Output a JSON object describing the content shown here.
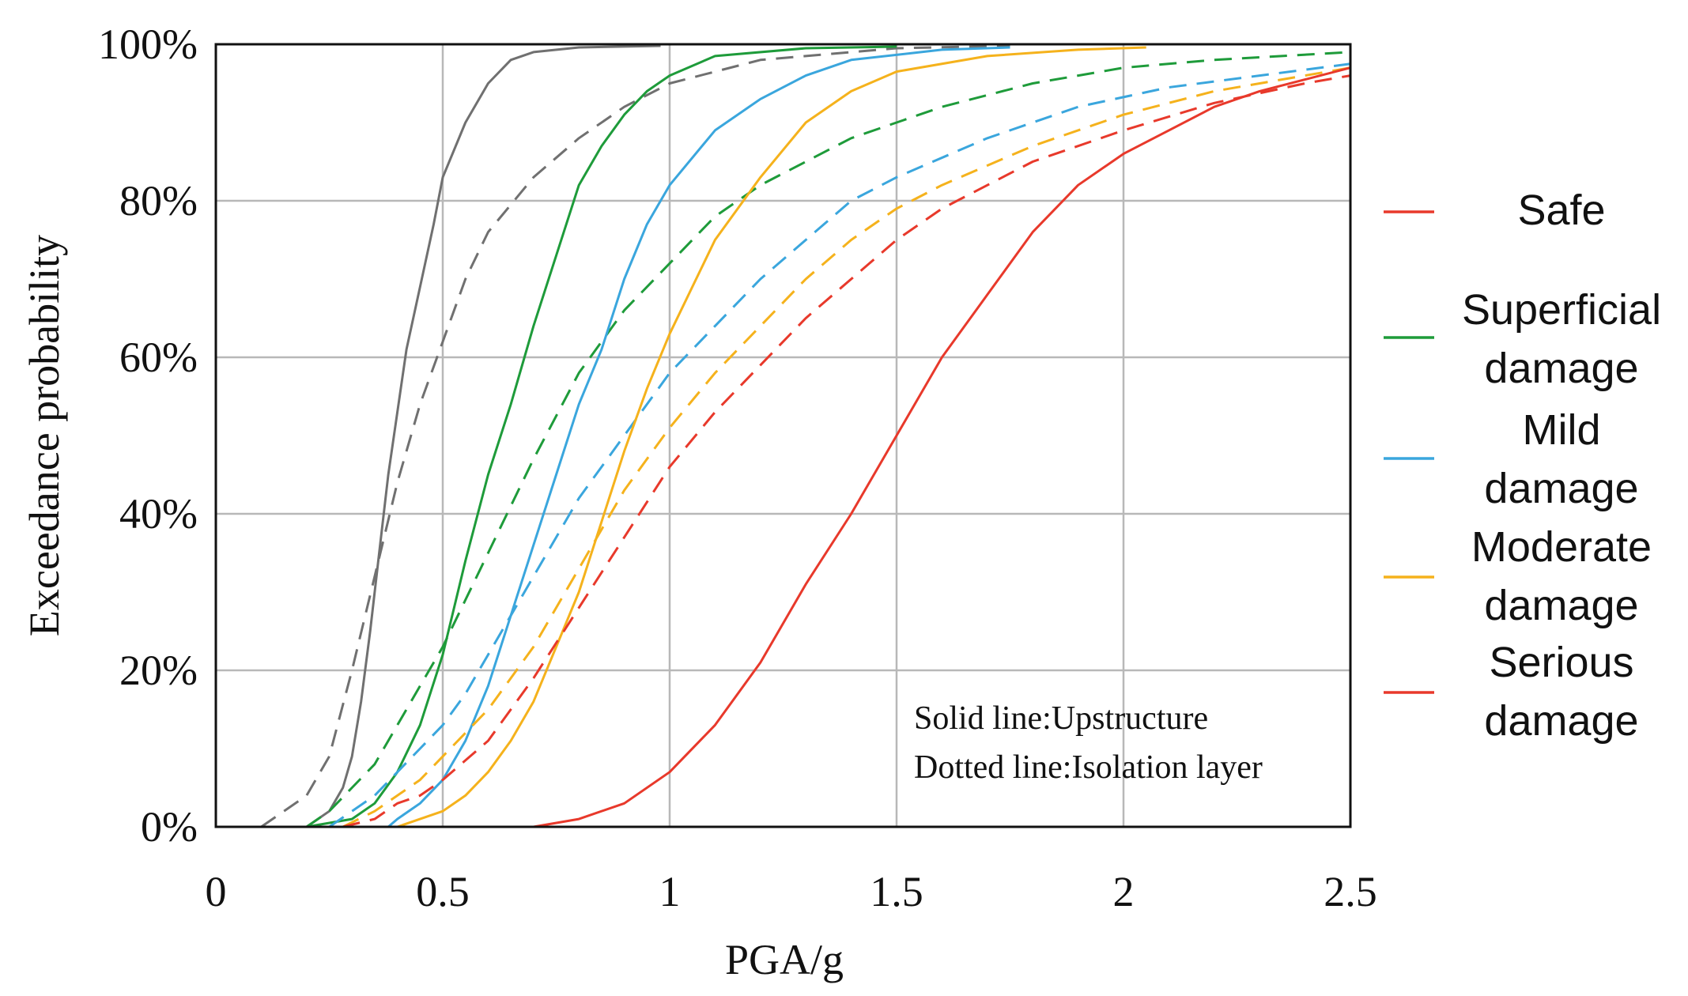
{
  "chart_data": {
    "type": "line",
    "xlabel": "PGA/g",
    "ylabel": "Exceedance probability",
    "xlim": [
      0,
      2.5
    ],
    "ylim": [
      0,
      100
    ],
    "x_ticks": [
      0,
      0.5,
      1,
      1.5,
      2,
      2.5
    ],
    "x_tick_labels": [
      "0",
      "0.5",
      "1",
      "1.5",
      "2",
      "2.5"
    ],
    "y_ticks": [
      0,
      20,
      40,
      60,
      80,
      100
    ],
    "y_tick_labels": [
      "0%",
      "20%",
      "40%",
      "60%",
      "80%",
      "100%"
    ],
    "grid": true,
    "annotations": [
      "Solid line:Upstructure",
      "Dotted line:Isolation layer"
    ],
    "legend": [
      {
        "label": [
          "Safe"
        ],
        "color": "#e8392b"
      },
      {
        "label": [
          "Superficial",
          "damage"
        ],
        "color": "#1e9b3a"
      },
      {
        "label": [
          "Mild",
          "damage"
        ],
        "color": "#3aa6dd"
      },
      {
        "label": [
          "Moderate",
          "damage"
        ],
        "color": "#f5b21c"
      },
      {
        "label": [
          "Serious",
          "damage"
        ],
        "color": "#e8392b"
      }
    ],
    "series": [
      {
        "name": "Safe (Upstructure)",
        "color": "#707070",
        "style": "solid",
        "points": [
          [
            0.2,
            0
          ],
          [
            0.25,
            2
          ],
          [
            0.28,
            5
          ],
          [
            0.3,
            9
          ],
          [
            0.32,
            16
          ],
          [
            0.34,
            25
          ],
          [
            0.36,
            35
          ],
          [
            0.38,
            45
          ],
          [
            0.4,
            53
          ],
          [
            0.42,
            61
          ],
          [
            0.45,
            69
          ],
          [
            0.48,
            77
          ],
          [
            0.5,
            83
          ],
          [
            0.55,
            90
          ],
          [
            0.6,
            95
          ],
          [
            0.65,
            98
          ],
          [
            0.7,
            99
          ],
          [
            0.8,
            99.6
          ],
          [
            0.98,
            99.8
          ]
        ]
      },
      {
        "name": "Safe (Isolation layer)",
        "color": "#707070",
        "style": "dashed",
        "points": [
          [
            0.1,
            0
          ],
          [
            0.15,
            2
          ],
          [
            0.2,
            4
          ],
          [
            0.25,
            9
          ],
          [
            0.3,
            20
          ],
          [
            0.35,
            32
          ],
          [
            0.4,
            44
          ],
          [
            0.45,
            54
          ],
          [
            0.5,
            62
          ],
          [
            0.55,
            70
          ],
          [
            0.6,
            76
          ],
          [
            0.7,
            83
          ],
          [
            0.8,
            88
          ],
          [
            0.9,
            92
          ],
          [
            1.0,
            95
          ],
          [
            1.2,
            98
          ],
          [
            1.5,
            99.5
          ],
          [
            1.75,
            99.8
          ]
        ]
      },
      {
        "name": "Superficial damage (Upstructure)",
        "color": "#1e9b3a",
        "style": "solid",
        "points": [
          [
            0.2,
            0
          ],
          [
            0.3,
            1
          ],
          [
            0.35,
            3
          ],
          [
            0.4,
            7
          ],
          [
            0.45,
            13
          ],
          [
            0.5,
            22
          ],
          [
            0.55,
            34
          ],
          [
            0.6,
            45
          ],
          [
            0.65,
            54
          ],
          [
            0.7,
            64
          ],
          [
            0.75,
            73
          ],
          [
            0.8,
            82
          ],
          [
            0.85,
            87
          ],
          [
            0.9,
            91
          ],
          [
            0.95,
            94
          ],
          [
            1.0,
            96
          ],
          [
            1.1,
            98.5
          ],
          [
            1.3,
            99.5
          ],
          [
            1.5,
            99.7
          ]
        ]
      },
      {
        "name": "Superficial damage (Isolation layer)",
        "color": "#1e9b3a",
        "style": "dashed",
        "points": [
          [
            0.2,
            0
          ],
          [
            0.25,
            2
          ],
          [
            0.3,
            5
          ],
          [
            0.35,
            8
          ],
          [
            0.4,
            13
          ],
          [
            0.45,
            18
          ],
          [
            0.5,
            23
          ],
          [
            0.55,
            29
          ],
          [
            0.6,
            35
          ],
          [
            0.65,
            41
          ],
          [
            0.7,
            47
          ],
          [
            0.8,
            58
          ],
          [
            0.9,
            66
          ],
          [
            1.0,
            72
          ],
          [
            1.1,
            78
          ],
          [
            1.2,
            82
          ],
          [
            1.4,
            88
          ],
          [
            1.6,
            92
          ],
          [
            1.8,
            95
          ],
          [
            2.0,
            97
          ],
          [
            2.2,
            98
          ],
          [
            2.5,
            99
          ]
        ]
      },
      {
        "name": "Mild damage (Upstructure)",
        "color": "#3aa6dd",
        "style": "solid",
        "points": [
          [
            0.38,
            0
          ],
          [
            0.4,
            1
          ],
          [
            0.45,
            3
          ],
          [
            0.5,
            6
          ],
          [
            0.55,
            11
          ],
          [
            0.6,
            18
          ],
          [
            0.65,
            27
          ],
          [
            0.7,
            36
          ],
          [
            0.75,
            45
          ],
          [
            0.8,
            54
          ],
          [
            0.85,
            61
          ],
          [
            0.9,
            70
          ],
          [
            0.95,
            77
          ],
          [
            1.0,
            82
          ],
          [
            1.1,
            89
          ],
          [
            1.2,
            93
          ],
          [
            1.3,
            96
          ],
          [
            1.4,
            98
          ],
          [
            1.6,
            99.3
          ],
          [
            1.75,
            99.6
          ]
        ]
      },
      {
        "name": "Mild damage (Isolation layer)",
        "color": "#3aa6dd",
        "style": "dashed",
        "points": [
          [
            0.25,
            0
          ],
          [
            0.3,
            2
          ],
          [
            0.35,
            4
          ],
          [
            0.4,
            7
          ],
          [
            0.45,
            10
          ],
          [
            0.5,
            13
          ],
          [
            0.55,
            17
          ],
          [
            0.6,
            22
          ],
          [
            0.7,
            32
          ],
          [
            0.8,
            42
          ],
          [
            0.9,
            50
          ],
          [
            1.0,
            58
          ],
          [
            1.1,
            64
          ],
          [
            1.2,
            70
          ],
          [
            1.3,
            75
          ],
          [
            1.4,
            80
          ],
          [
            1.5,
            83
          ],
          [
            1.7,
            88
          ],
          [
            1.9,
            92
          ],
          [
            2.1,
            94.5
          ],
          [
            2.3,
            96
          ],
          [
            2.5,
            97.5
          ]
        ]
      },
      {
        "name": "Moderate damage (Upstructure)",
        "color": "#f5b21c",
        "style": "solid",
        "points": [
          [
            0.4,
            0
          ],
          [
            0.45,
            1
          ],
          [
            0.5,
            2
          ],
          [
            0.55,
            4
          ],
          [
            0.6,
            7
          ],
          [
            0.65,
            11
          ],
          [
            0.7,
            16
          ],
          [
            0.75,
            23
          ],
          [
            0.8,
            30
          ],
          [
            0.85,
            39
          ],
          [
            0.9,
            48
          ],
          [
            0.95,
            56
          ],
          [
            1.0,
            63
          ],
          [
            1.05,
            69
          ],
          [
            1.1,
            75
          ],
          [
            1.2,
            83
          ],
          [
            1.3,
            90
          ],
          [
            1.4,
            94
          ],
          [
            1.5,
            96.5
          ],
          [
            1.7,
            98.5
          ],
          [
            1.9,
            99.3
          ],
          [
            2.05,
            99.6
          ]
        ]
      },
      {
        "name": "Moderate damage (Isolation layer)",
        "color": "#f5b21c",
        "style": "dashed",
        "points": [
          [
            0.28,
            0
          ],
          [
            0.35,
            2
          ],
          [
            0.4,
            4
          ],
          [
            0.45,
            6
          ],
          [
            0.5,
            9
          ],
          [
            0.55,
            12
          ],
          [
            0.6,
            15
          ],
          [
            0.7,
            23
          ],
          [
            0.8,
            33
          ],
          [
            0.9,
            43
          ],
          [
            1.0,
            51
          ],
          [
            1.1,
            58
          ],
          [
            1.2,
            64
          ],
          [
            1.3,
            70
          ],
          [
            1.4,
            75
          ],
          [
            1.5,
            79
          ],
          [
            1.6,
            82
          ],
          [
            1.8,
            87
          ],
          [
            2.0,
            91
          ],
          [
            2.2,
            94
          ],
          [
            2.4,
            96
          ],
          [
            2.5,
            97
          ]
        ]
      },
      {
        "name": "Serious damage (Upstructure)",
        "color": "#e8392b",
        "style": "solid",
        "points": [
          [
            0.7,
            0
          ],
          [
            0.8,
            1
          ],
          [
            0.9,
            3
          ],
          [
            1.0,
            7
          ],
          [
            1.1,
            13
          ],
          [
            1.2,
            21
          ],
          [
            1.3,
            31
          ],
          [
            1.4,
            40
          ],
          [
            1.5,
            50
          ],
          [
            1.6,
            60
          ],
          [
            1.7,
            68
          ],
          [
            1.8,
            76
          ],
          [
            1.9,
            82
          ],
          [
            2.0,
            86
          ],
          [
            2.1,
            89
          ],
          [
            2.2,
            92
          ],
          [
            2.3,
            94
          ],
          [
            2.4,
            95.5
          ],
          [
            2.5,
            97
          ]
        ]
      },
      {
        "name": "Serious damage (Isolation layer)",
        "color": "#e8392b",
        "style": "dashed",
        "points": [
          [
            0.28,
            0
          ],
          [
            0.35,
            1
          ],
          [
            0.4,
            3
          ],
          [
            0.45,
            4
          ],
          [
            0.5,
            6
          ],
          [
            0.6,
            11
          ],
          [
            0.7,
            19
          ],
          [
            0.8,
            28
          ],
          [
            0.9,
            37
          ],
          [
            1.0,
            46
          ],
          [
            1.1,
            53
          ],
          [
            1.2,
            59
          ],
          [
            1.3,
            65
          ],
          [
            1.4,
            70
          ],
          [
            1.5,
            75
          ],
          [
            1.6,
            79
          ],
          [
            1.8,
            85
          ],
          [
            2.0,
            89
          ],
          [
            2.2,
            92.5
          ],
          [
            2.4,
            95
          ],
          [
            2.5,
            96
          ]
        ]
      }
    ]
  }
}
